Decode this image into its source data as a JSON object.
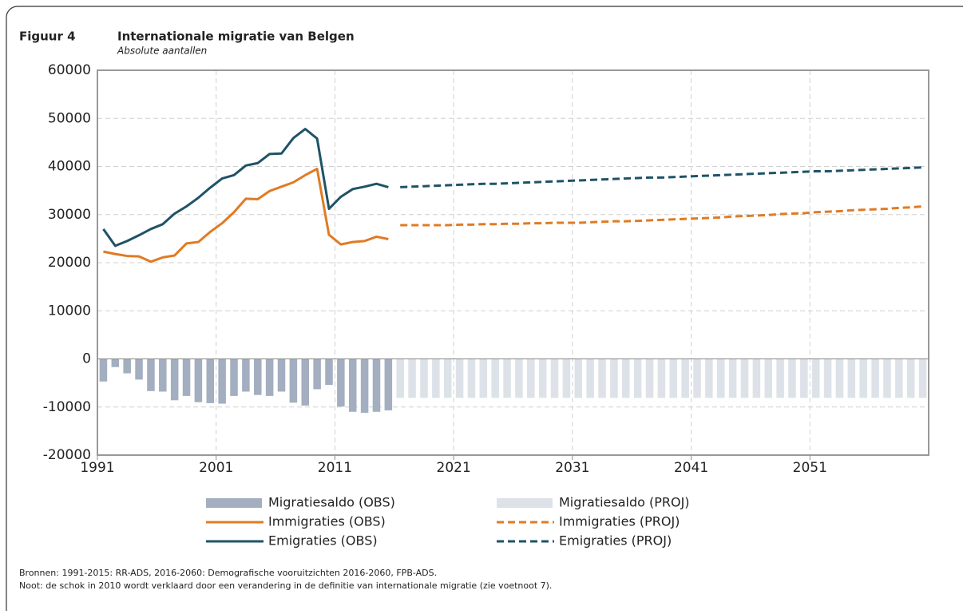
{
  "chart_data": {
    "type": "combo",
    "figure_label": "Figuur 4",
    "title": "Internationale migratie van Belgen",
    "subtitle": "Absolute aantallen",
    "x": [
      1991,
      1992,
      1993,
      1994,
      1995,
      1996,
      1997,
      1998,
      1999,
      2000,
      2001,
      2002,
      2003,
      2004,
      2005,
      2006,
      2007,
      2008,
      2009,
      2010,
      2011,
      2012,
      2013,
      2014,
      2015,
      2016,
      2017,
      2018,
      2019,
      2020,
      2021,
      2022,
      2023,
      2024,
      2025,
      2026,
      2027,
      2028,
      2029,
      2030,
      2031,
      2032,
      2033,
      2034,
      2035,
      2036,
      2037,
      2038,
      2039,
      2040,
      2041,
      2042,
      2043,
      2044,
      2045,
      2046,
      2047,
      2048,
      2049,
      2050,
      2051,
      2052,
      2053,
      2054,
      2055,
      2056,
      2057,
      2058,
      2059,
      2060
    ],
    "xlim": [
      1991,
      2061
    ],
    "xticks": [
      1991,
      2001,
      2011,
      2021,
      2031,
      2041,
      2051
    ],
    "ylim": [
      -20000,
      60000
    ],
    "yticks": [
      -20000,
      -10000,
      0,
      10000,
      20000,
      30000,
      40000,
      50000,
      60000
    ],
    "grid": true,
    "series": [
      {
        "name": "Migratiesaldo (OBS)",
        "type": "bar",
        "color": "#a3afc0",
        "values": [
          -4700,
          -1700,
          -3000,
          -4300,
          -6700,
          -6800,
          -8600,
          -7700,
          -9000,
          -9200,
          -9300,
          -7700,
          -6800,
          -7500,
          -7700,
          -6800,
          -9100,
          -9700,
          -6300,
          -5400,
          -9900,
          -11000,
          -11200,
          -11000,
          -10700,
          null,
          null,
          null,
          null,
          null,
          null,
          null,
          null,
          null,
          null,
          null,
          null,
          null,
          null,
          null,
          null,
          null,
          null,
          null,
          null,
          null,
          null,
          null,
          null,
          null,
          null,
          null,
          null,
          null,
          null,
          null,
          null,
          null,
          null,
          null,
          null,
          null,
          null,
          null,
          null,
          null,
          null,
          null,
          null,
          null
        ]
      },
      {
        "name": "Migratiesaldo (PROJ)",
        "type": "bar",
        "color": "#dde2e8",
        "values": [
          null,
          null,
          null,
          null,
          null,
          null,
          null,
          null,
          null,
          null,
          null,
          null,
          null,
          null,
          null,
          null,
          null,
          null,
          null,
          null,
          null,
          null,
          null,
          null,
          null,
          -8100,
          -8100,
          -8100,
          -8100,
          -8100,
          -8100,
          -8100,
          -8100,
          -8100,
          -8100,
          -8100,
          -8100,
          -8100,
          -8100,
          -8100,
          -8100,
          -8100,
          -8100,
          -8100,
          -8100,
          -8100,
          -8100,
          -8100,
          -8100,
          -8100,
          -8100,
          -8100,
          -8100,
          -8100,
          -8100,
          -8100,
          -8100,
          -8100,
          -8100,
          -8100,
          -8100,
          -8100,
          -8100,
          -8100,
          -8100,
          -8100,
          -8100,
          -8100,
          -8100,
          -8100
        ]
      },
      {
        "name": "Immigraties (OBS)",
        "type": "line",
        "dashed": false,
        "color": "#e07b24",
        "values": [
          22300,
          21800,
          21400,
          21300,
          20200,
          21100,
          21500,
          24000,
          24300,
          26400,
          28200,
          30500,
          33300,
          33200,
          34900,
          35800,
          36700,
          38200,
          39500,
          25800,
          23800,
          24300,
          24500,
          25400,
          24900,
          null,
          null,
          null,
          null,
          null,
          null,
          null,
          null,
          null,
          null,
          null,
          null,
          null,
          null,
          null,
          null,
          null,
          null,
          null,
          null,
          null,
          null,
          null,
          null,
          null,
          null,
          null,
          null,
          null,
          null,
          null,
          null,
          null,
          null,
          null,
          null,
          null,
          null,
          null,
          null,
          null,
          null,
          null,
          null,
          null
        ]
      },
      {
        "name": "Immigraties (PROJ)",
        "type": "line",
        "dashed": true,
        "color": "#e07b24",
        "values": [
          null,
          null,
          null,
          null,
          null,
          null,
          null,
          null,
          null,
          null,
          null,
          null,
          null,
          null,
          null,
          null,
          null,
          null,
          null,
          null,
          null,
          null,
          null,
          null,
          null,
          27800,
          27800,
          27800,
          27800,
          27800,
          27900,
          27900,
          28000,
          28000,
          28100,
          28100,
          28200,
          28200,
          28300,
          28300,
          28300,
          28400,
          28500,
          28600,
          28600,
          28700,
          28800,
          28900,
          29000,
          29100,
          29200,
          29300,
          29400,
          29600,
          29700,
          29800,
          29900,
          30100,
          30200,
          30300,
          30500,
          30600,
          30700,
          30900,
          31000,
          31100,
          31200,
          31400,
          31500,
          31700
        ]
      },
      {
        "name": "Emigraties (OBS)",
        "type": "line",
        "dashed": false,
        "color": "#1f5366",
        "values": [
          27000,
          23500,
          24500,
          25700,
          27000,
          28000,
          30200,
          31700,
          33500,
          35600,
          37500,
          38200,
          40200,
          40700,
          42600,
          42700,
          45900,
          47800,
          45800,
          31200,
          33700,
          35300,
          35800,
          36400,
          35700,
          null,
          null,
          null,
          null,
          null,
          null,
          null,
          null,
          null,
          null,
          null,
          null,
          null,
          null,
          null,
          null,
          null,
          null,
          null,
          null,
          null,
          null,
          null,
          null,
          null,
          null,
          null,
          null,
          null,
          null,
          null,
          null,
          null,
          null,
          null,
          null,
          null,
          null,
          null,
          null,
          null,
          null,
          null,
          null,
          null
        ]
      },
      {
        "name": "Emigraties (PROJ)",
        "type": "line",
        "dashed": true,
        "color": "#1f5366",
        "values": [
          null,
          null,
          null,
          null,
          null,
          null,
          null,
          null,
          null,
          null,
          null,
          null,
          null,
          null,
          null,
          null,
          null,
          null,
          null,
          null,
          null,
          null,
          null,
          null,
          null,
          35700,
          35800,
          35900,
          36000,
          36100,
          36200,
          36300,
          36400,
          36400,
          36500,
          36600,
          36700,
          36800,
          36900,
          37000,
          37100,
          37200,
          37300,
          37400,
          37500,
          37600,
          37700,
          37700,
          37800,
          37900,
          38000,
          38100,
          38200,
          38300,
          38400,
          38500,
          38600,
          38700,
          38800,
          38900,
          39000,
          39000,
          39100,
          39200,
          39300,
          39400,
          39500,
          39600,
          39700,
          39800
        ]
      }
    ],
    "notes": [
      "Bronnen: 1991-2015: RR-ADS, 2016-2060: Demografische vooruitzichten 2016-2060, FPB-ADS.",
      "Noot: de schok in 2010 wordt verklaard door een verandering in de definitie van internationale migratie (zie voetnoot 7)."
    ]
  }
}
